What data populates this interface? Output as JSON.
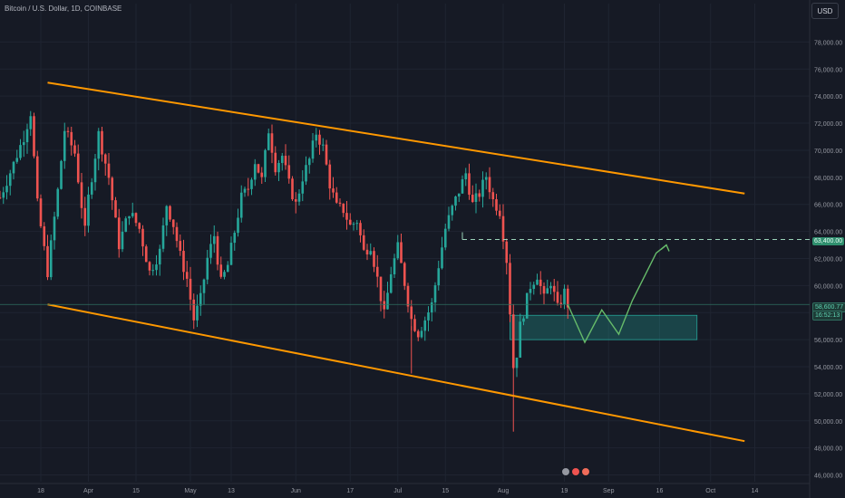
{
  "header": {
    "title": "Bitcoin / U.S. Dollar, 1D, COINBASE",
    "currency_button": "USD"
  },
  "price_tags": {
    "target": "63,400.00",
    "current": "58,600.77",
    "countdown": "16:52:13"
  },
  "events_icons": [
    "dividend-icon",
    "earnings-icon",
    "split-icon"
  ],
  "colors": {
    "bg": "#161a25",
    "up": "#26a69a",
    "down": "#ef5350",
    "channel": "#ff9800",
    "projection": "#66bb6a",
    "zone": "#26a69a"
  },
  "chart_data": {
    "type": "candlestick",
    "ylim": [
      45500,
      79500
    ],
    "y_ticks": [
      46000,
      48000,
      50000,
      52000,
      54000,
      56000,
      58000,
      60000,
      62000,
      64000,
      66000,
      68000,
      70000,
      72000,
      74000,
      76000,
      78000
    ],
    "y_tick_labels": [
      "46,000.00",
      "48,000.00",
      "50,000.00",
      "52,000.00",
      "54,000.00",
      "56,000.00",
      "58,000.00",
      "60,000.00",
      "62,000.00",
      "64,000.00",
      "66,000.00",
      "68,000.00",
      "70,000.00",
      "72,000.00",
      "74,000.00",
      "76,000.00",
      "78,000.00"
    ],
    "x_labels": [
      {
        "label": "18",
        "day": -14
      },
      {
        "label": "Apr",
        "day": 0
      },
      {
        "label": "15",
        "day": 14
      },
      {
        "label": "May",
        "day": 30
      },
      {
        "label": "13",
        "day": 42
      },
      {
        "label": "Jun",
        "day": 61
      },
      {
        "label": "17",
        "day": 77
      },
      {
        "label": "Jul",
        "day": 91
      },
      {
        "label": "15",
        "day": 105
      },
      {
        "label": "Aug",
        "day": 122
      },
      {
        "label": "19",
        "day": 140
      },
      {
        "label": "Sep",
        "day": 153
      },
      {
        "label": "16",
        "day": 168
      },
      {
        "label": "Sep",
        "day": 0,
        "skip": true
      },
      {
        "label": "Oct",
        "day": 183
      },
      {
        "label": "14",
        "day": 196
      }
    ],
    "x_day_range": [
      -26,
      198
    ],
    "anchors": [
      [
        -26,
        66500
      ],
      [
        -22,
        69000
      ],
      [
        -19,
        71000
      ],
      [
        -17,
        72800
      ],
      [
        -15,
        66000
      ],
      [
        -12,
        61000
      ],
      [
        -9,
        67000
      ],
      [
        -7,
        71500
      ],
      [
        -4,
        69800
      ],
      [
        -1,
        64000
      ],
      [
        0,
        66500
      ],
      [
        3,
        71200
      ],
      [
        6,
        68000
      ],
      [
        9,
        63000
      ],
      [
        12,
        65500
      ],
      [
        15,
        64200
      ],
      [
        18,
        61000
      ],
      [
        21,
        62500
      ],
      [
        23,
        66000
      ],
      [
        25,
        64500
      ],
      [
        27,
        62200
      ],
      [
        29,
        60500
      ],
      [
        31,
        57500
      ],
      [
        33,
        59000
      ],
      [
        35,
        62000
      ],
      [
        37,
        63700
      ],
      [
        39,
        60200
      ],
      [
        41,
        61500
      ],
      [
        43,
        64000
      ],
      [
        45,
        66500
      ],
      [
        47,
        67200
      ],
      [
        49,
        69200
      ],
      [
        51,
        67800
      ],
      [
        53,
        71500
      ],
      [
        55,
        68800
      ],
      [
        57,
        69600
      ],
      [
        59,
        67500
      ],
      [
        61,
        66000
      ],
      [
        63,
        68000
      ],
      [
        65,
        69300
      ],
      [
        67,
        71300
      ],
      [
        69,
        70200
      ],
      [
        71,
        67500
      ],
      [
        73,
        65800
      ],
      [
        75,
        65600
      ],
      [
        77,
        64400
      ],
      [
        79,
        64800
      ],
      [
        81,
        62500
      ],
      [
        83,
        63000
      ],
      [
        85,
        60500
      ],
      [
        87,
        57800
      ],
      [
        89,
        61000
      ],
      [
        91,
        62800
      ],
      [
        93,
        60200
      ],
      [
        95,
        57500
      ],
      [
        97,
        56500
      ],
      [
        99,
        57500
      ],
      [
        101,
        58600
      ],
      [
        103,
        61500
      ],
      [
        105,
        64200
      ],
      [
        107,
        65700
      ],
      [
        109,
        67000
      ],
      [
        111,
        68300
      ],
      [
        113,
        66000
      ],
      [
        115,
        66800
      ],
      [
        117,
        68100
      ],
      [
        119,
        66300
      ],
      [
        121,
        65500
      ],
      [
        123,
        61900
      ],
      [
        124,
        58100
      ],
      [
        125,
        54000
      ],
      [
        126,
        55000
      ],
      [
        127,
        57000
      ],
      [
        128,
        58000
      ],
      [
        130,
        60000
      ],
      [
        132,
        60800
      ],
      [
        134,
        59000
      ],
      [
        136,
        60300
      ],
      [
        138,
        58300
      ],
      [
        140,
        59500
      ],
      [
        141,
        58600
      ]
    ],
    "channel_upper": {
      "start": [
        -12,
        75000
      ],
      "end": [
        193,
        66800
      ]
    },
    "channel_lower": {
      "start": [
        -12,
        58600
      ],
      "end": [
        193,
        48500
      ]
    },
    "target_level": 63400,
    "current_price": 58600.77,
    "demand_zone": {
      "day_start": 124,
      "day_end": 179,
      "price_low": 56000,
      "price_high": 57800
    },
    "projection_path": [
      [
        141,
        58600
      ],
      [
        146,
        55800
      ],
      [
        151,
        58200
      ],
      [
        156,
        56400
      ],
      [
        160,
        58900
      ],
      [
        167,
        62400
      ],
      [
        170,
        63000
      ]
    ]
  }
}
